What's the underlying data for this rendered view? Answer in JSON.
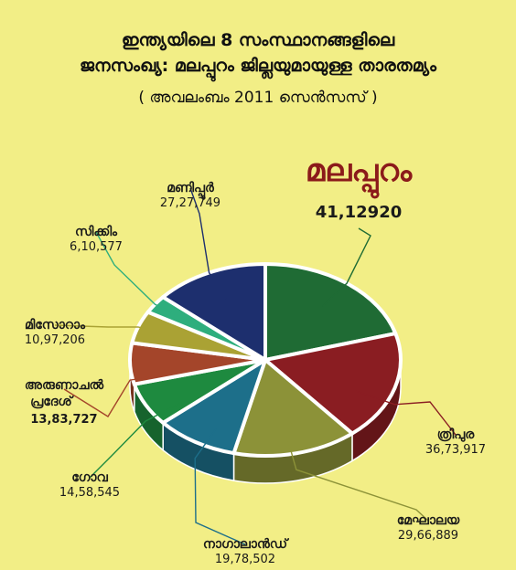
{
  "title_line1": "ഇന്ത്യയിലെ 8 സംസ്ഥാനങ്ങളിലെ",
  "title_line2": "ജനസംഖ്യ: മലപ്പുറം ജില്ലയുമായുള്ള താരതമ്യം",
  "subtitle": "( അവലംബം 2011 സെൻസസ് )",
  "chart_data": {
    "type": "pie",
    "title": "ഇന്ത്യയിലെ 8 സംസ്ഥാനങ്ങളിലെ ജനസംഖ്യ: മലപ്പുറം ജില്ലയുമായുള്ള താരതമ്യം",
    "subtitle": "( അവലംബം 2011 സെൻസസ് )",
    "slices": [
      {
        "label": "മലപ്പുറം",
        "value_text": "41,12920",
        "value": 4112920,
        "color": "#1f6b34"
      },
      {
        "label": "ത്രിപുര",
        "value_text": "36,73,917",
        "value": 3673917,
        "color": "#8a1d22"
      },
      {
        "label": "മേഘാലയ",
        "value_text": "29,66,889",
        "value": 2966889,
        "color": "#8c9238"
      },
      {
        "label": "നാഗാലാൻഡ്",
        "value_text": "19,78,502",
        "value": 1978502,
        "color": "#1d6f8a"
      },
      {
        "label": "ഗോവ",
        "value_text": "14,58,545",
        "value": 1458545,
        "color": "#1e8a3f"
      },
      {
        "label": "അരുണാചൽ പ്രദേശ്",
        "value_text": "13,83,727",
        "value": 1383727,
        "color": "#a4452a"
      },
      {
        "label": "മിസോറാം",
        "value_text": "10,97,206",
        "value": 1097206,
        "color": "#aaa234"
      },
      {
        "label": "സിക്കിം",
        "value_text": "6,10,577",
        "value": 610577,
        "color": "#2eae7d"
      },
      {
        "label": "മണിപ്പൂർ",
        "value_text": "27,27,749",
        "value": 2727749,
        "color": "#1d2f6e"
      }
    ]
  }
}
